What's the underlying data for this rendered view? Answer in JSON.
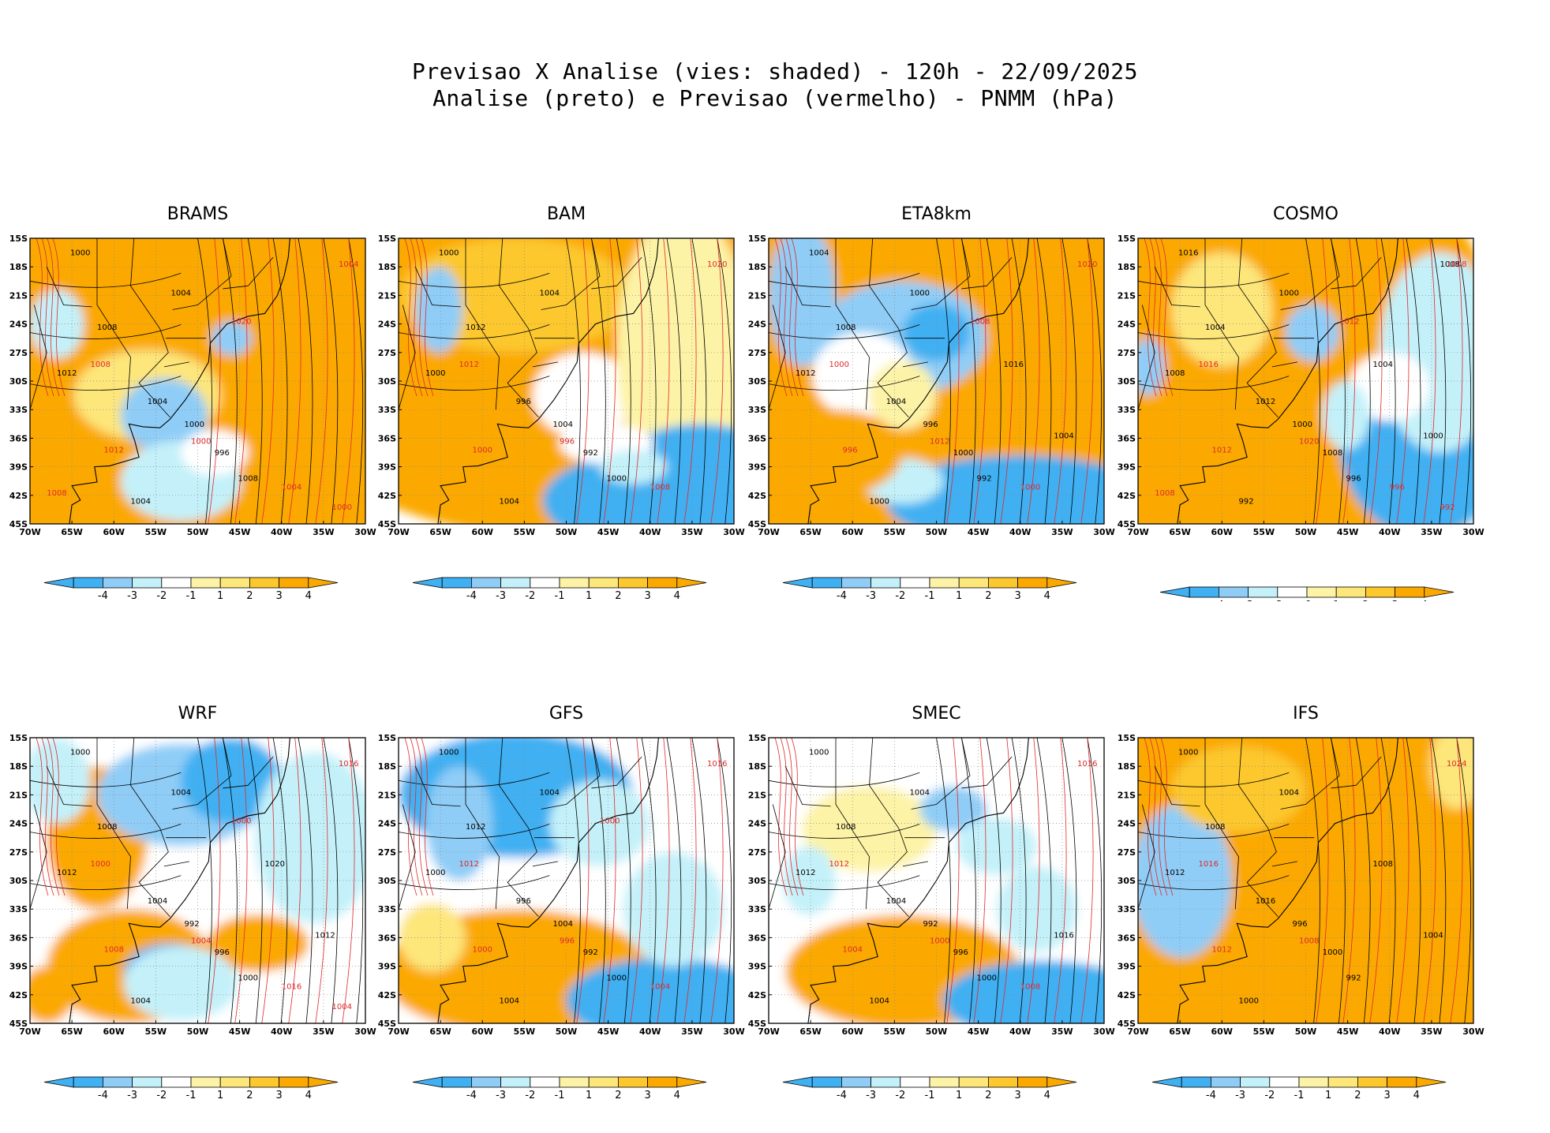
{
  "title": {
    "line1": "Previsao X Analise (vies: shaded) - 120h - 22/09/2025",
    "line2": "Analise (preto) e Previsao (vermelho) - PNMM (hPa)"
  },
  "colors": {
    "bias_neg4": "#3fb0f2",
    "bias_neg3": "#8fcdf7",
    "bias_neg2": "#c4f1f9",
    "bias_neg1": "#ffffff",
    "bias_pos1": "#fdf3a6",
    "bias_pos2": "#fde67a",
    "bias_pos3": "#fcc82d",
    "bias_pos4": "#fba900",
    "analysis_contour": "#000000",
    "forecast_contour": "#e0282a"
  },
  "axes": {
    "lat_labels": [
      "15S",
      "18S",
      "21S",
      "24S",
      "27S",
      "30S",
      "33S",
      "36S",
      "39S",
      "42S",
      "45S"
    ],
    "lon_labels": [
      "70W",
      "65W",
      "60W",
      "55W",
      "50W",
      "45W",
      "40W",
      "35W",
      "30W"
    ]
  },
  "colorbar": {
    "ticks": [
      "-4",
      "-3",
      "-2",
      "-1",
      "1",
      "2",
      "3",
      "4"
    ]
  },
  "panels": [
    {
      "model": "BRAMS",
      "pattern": "warm",
      "black_labels": [
        "1000",
        "1004",
        "1008",
        "1012",
        "1004",
        "996",
        "1000",
        "1008",
        "1004"
      ],
      "red_labels": [
        "1004",
        "1008",
        "1000",
        "1012",
        "1004",
        "1020",
        "1000",
        "1008"
      ]
    },
    {
      "model": "BAM",
      "pattern": "warm-south-cold",
      "black_labels": [
        "1000",
        "1004",
        "1012",
        "1000",
        "996",
        "992",
        "1004",
        "1000",
        "1004"
      ],
      "red_labels": [
        "1020",
        "1012",
        "996",
        "1000",
        "1008"
      ]
    },
    {
      "model": "ETA8km",
      "pattern": "mixed-south-cold",
      "black_labels": [
        "1004",
        "1000",
        "1008",
        "1012",
        "1004",
        "1000",
        "996",
        "992",
        "1000",
        "1004",
        "1016"
      ],
      "red_labels": [
        "1020",
        "1000",
        "1012",
        "996",
        "1000",
        "1008"
      ]
    },
    {
      "model": "COSMO",
      "pattern": "warm-east-cold",
      "black_labels": [
        "1016",
        "1000",
        "1004",
        "1008",
        "1012",
        "1008",
        "1000",
        "996",
        "992",
        "1000",
        "1004",
        "1008"
      ],
      "red_labels": [
        "1008",
        "1016",
        "1020",
        "1012",
        "996",
        "1012",
        "992",
        "1008"
      ]
    },
    {
      "model": "WRF",
      "pattern": "cold-north",
      "black_labels": [
        "1000",
        "1004",
        "1008",
        "1012",
        "1004",
        "996",
        "992",
        "1000",
        "1004",
        "1012",
        "1020"
      ],
      "red_labels": [
        "1016",
        "1000",
        "1004",
        "1008",
        "1016",
        "1000",
        "1004"
      ]
    },
    {
      "model": "GFS",
      "pattern": "cold-north-warm-south",
      "black_labels": [
        "1000",
        "1004",
        "1012",
        "1000",
        "996",
        "992",
        "1004",
        "1000",
        "1004"
      ],
      "red_labels": [
        "1016",
        "1012",
        "996",
        "1000",
        "1004",
        "1000"
      ]
    },
    {
      "model": "SMEC",
      "pattern": "mixed-warm-south",
      "black_labels": [
        "1000",
        "1004",
        "1008",
        "1012",
        "1004",
        "996",
        "992",
        "1000",
        "1004",
        "1016"
      ],
      "red_labels": [
        "1016",
        "1012",
        "1000",
        "1004",
        "1008"
      ]
    },
    {
      "model": "IFS",
      "pattern": "warm-west-cold",
      "black_labels": [
        "1000",
        "1004",
        "1008",
        "1012",
        "1016",
        "1000",
        "996",
        "992",
        "1000",
        "1004",
        "1008"
      ],
      "red_labels": [
        "1024",
        "1016",
        "1008",
        "1012"
      ]
    }
  ]
}
